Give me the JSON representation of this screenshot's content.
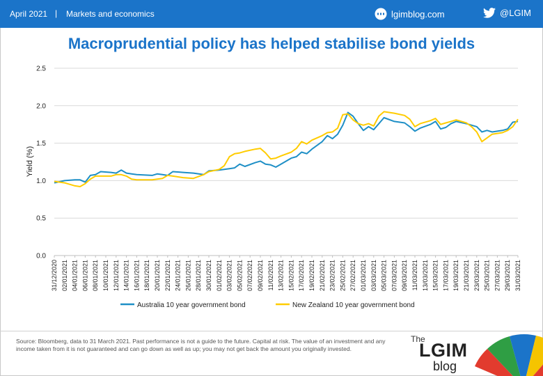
{
  "header": {
    "date": "April 2021",
    "separator": "|",
    "section": "Markets and economics",
    "site": "lgimblog.com",
    "twitter": "@LGIM"
  },
  "title": "Macroprudential policy has helped stabilise bond yields",
  "source_note": "Source: Bloomberg, data to 31 March 2021. Past performance is not a guide to the future. Capital at risk. The value of an investment and any income taken from it is not guaranteed and can go down as well as up; you may not get back the amount you originally invested.",
  "logo": {
    "the": "The",
    "lgim": "LGIM",
    "blog": "blog"
  },
  "colors": {
    "brand": "#1b74c9",
    "australia": "#1e8fc6",
    "new_zealand": "#ffcc00",
    "grid": "#d9d9d9"
  },
  "chart_data": {
    "type": "line",
    "title": "Macroprudential policy has helped stabilise bond yields",
    "ylabel": "Yield (%)",
    "xlabel": "",
    "ylim": [
      0.0,
      2.5
    ],
    "yticks": [
      "0.0",
      "0.5",
      "1.0",
      "1.5",
      "2.0",
      "2.5"
    ],
    "grid": true,
    "legend": "bottom",
    "xtick_labels": [
      "31/12/2020",
      "02/01/2021",
      "04/01/2021",
      "06/01/2021",
      "08/01/2021",
      "10/01/2021",
      "12/01/2021",
      "14/01/2021",
      "16/01/2021",
      "18/01/2021",
      "20/01/2021",
      "22/01/2021",
      "24/01/2021",
      "26/01/2021",
      "28/01/2021",
      "30/01/2021",
      "01/02/2021",
      "03/02/2021",
      "05/02/2021",
      "07/02/2021",
      "09/02/2021",
      "11/02/2021",
      "13/02/2021",
      "15/02/2021",
      "17/02/2021",
      "19/02/2021",
      "21/02/2021",
      "23/02/2021",
      "25/02/2021",
      "27/02/2021",
      "01/03/2021",
      "03/03/2021",
      "05/03/2021",
      "07/03/2021",
      "09/03/2021",
      "11/03/2021",
      "13/03/2021",
      "15/03/2021",
      "17/03/2021",
      "19/03/2021",
      "21/03/2021",
      "23/03/2021",
      "25/03/2021",
      "27/03/2021",
      "29/03/2021",
      "31/03/2021"
    ],
    "series": [
      {
        "name": "Australia 10 year government bond",
        "points": [
          [
            "31/12/2020",
            0.97
          ],
          [
            "02/01/2021",
            1.0
          ],
          [
            "04/01/2021",
            1.01
          ],
          [
            "05/01/2021",
            1.01
          ],
          [
            "06/01/2021",
            0.98
          ],
          [
            "07/01/2021",
            1.07
          ],
          [
            "08/01/2021",
            1.08
          ],
          [
            "09/01/2021",
            1.12
          ],
          [
            "11/01/2021",
            1.11
          ],
          [
            "12/01/2021",
            1.1
          ],
          [
            "13/01/2021",
            1.14
          ],
          [
            "14/01/2021",
            1.1
          ],
          [
            "15/01/2021",
            1.09
          ],
          [
            "16/01/2021",
            1.08
          ],
          [
            "19/01/2021",
            1.07
          ],
          [
            "20/01/2021",
            1.09
          ],
          [
            "21/01/2021",
            1.08
          ],
          [
            "22/01/2021",
            1.07
          ],
          [
            "23/01/2021",
            1.12
          ],
          [
            "25/01/2021",
            1.11
          ],
          [
            "27/01/2021",
            1.1
          ],
          [
            "29/01/2021",
            1.08
          ],
          [
            "30/01/2021",
            1.13
          ],
          [
            "01/02/2021",
            1.14
          ],
          [
            "02/02/2021",
            1.15
          ],
          [
            "03/02/2021",
            1.16
          ],
          [
            "04/02/2021",
            1.17
          ],
          [
            "05/02/2021",
            1.22
          ],
          [
            "06/02/2021",
            1.19
          ],
          [
            "08/02/2021",
            1.24
          ],
          [
            "09/02/2021",
            1.26
          ],
          [
            "10/02/2021",
            1.22
          ],
          [
            "11/02/2021",
            1.21
          ],
          [
            "12/02/2021",
            1.18
          ],
          [
            "13/02/2021",
            1.22
          ],
          [
            "15/02/2021",
            1.3
          ],
          [
            "16/02/2021",
            1.32
          ],
          [
            "17/02/2021",
            1.38
          ],
          [
            "18/02/2021",
            1.36
          ],
          [
            "19/02/2021",
            1.42
          ],
          [
            "21/02/2021",
            1.52
          ],
          [
            "22/02/2021",
            1.6
          ],
          [
            "23/02/2021",
            1.56
          ],
          [
            "24/02/2021",
            1.62
          ],
          [
            "25/02/2021",
            1.74
          ],
          [
            "26/02/2021",
            1.91
          ],
          [
            "27/02/2021",
            1.86
          ],
          [
            "28/02/2021",
            1.76
          ],
          [
            "01/03/2021",
            1.67
          ],
          [
            "02/03/2021",
            1.72
          ],
          [
            "03/03/2021",
            1.68
          ],
          [
            "04/03/2021",
            1.76
          ],
          [
            "05/03/2021",
            1.84
          ],
          [
            "07/03/2021",
            1.79
          ],
          [
            "09/03/2021",
            1.77
          ],
          [
            "10/03/2021",
            1.72
          ],
          [
            "11/03/2021",
            1.66
          ],
          [
            "12/03/2021",
            1.7
          ],
          [
            "14/03/2021",
            1.75
          ],
          [
            "15/03/2021",
            1.79
          ],
          [
            "16/03/2021",
            1.69
          ],
          [
            "17/03/2021",
            1.71
          ],
          [
            "18/03/2021",
            1.76
          ],
          [
            "19/03/2021",
            1.79
          ],
          [
            "21/03/2021",
            1.76
          ],
          [
            "22/03/2021",
            1.74
          ],
          [
            "23/03/2021",
            1.72
          ],
          [
            "24/03/2021",
            1.65
          ],
          [
            "25/03/2021",
            1.67
          ],
          [
            "26/03/2021",
            1.65
          ],
          [
            "28/03/2021",
            1.67
          ],
          [
            "29/03/2021",
            1.69
          ],
          [
            "30/03/2021",
            1.78
          ],
          [
            "31/03/2021",
            1.79
          ]
        ]
      },
      {
        "name": "New Zealand 10 year government bond",
        "points": [
          [
            "31/12/2020",
            0.99
          ],
          [
            "02/01/2021",
            0.97
          ],
          [
            "04/01/2021",
            0.93
          ],
          [
            "05/01/2021",
            0.92
          ],
          [
            "06/01/2021",
            0.96
          ],
          [
            "07/01/2021",
            1.02
          ],
          [
            "08/01/2021",
            1.06
          ],
          [
            "09/01/2021",
            1.06
          ],
          [
            "11/01/2021",
            1.06
          ],
          [
            "12/01/2021",
            1.08
          ],
          [
            "13/01/2021",
            1.08
          ],
          [
            "14/01/2021",
            1.06
          ],
          [
            "15/01/2021",
            1.02
          ],
          [
            "16/01/2021",
            1.01
          ],
          [
            "19/01/2021",
            1.01
          ],
          [
            "20/01/2021",
            1.02
          ],
          [
            "21/01/2021",
            1.03
          ],
          [
            "22/01/2021",
            1.07
          ],
          [
            "23/01/2021",
            1.06
          ],
          [
            "25/01/2021",
            1.04
          ],
          [
            "27/01/2021",
            1.03
          ],
          [
            "29/01/2021",
            1.08
          ],
          [
            "30/01/2021",
            1.12
          ],
          [
            "01/02/2021",
            1.15
          ],
          [
            "02/02/2021",
            1.2
          ],
          [
            "03/02/2021",
            1.32
          ],
          [
            "04/02/2021",
            1.36
          ],
          [
            "05/02/2021",
            1.37
          ],
          [
            "06/02/2021",
            1.39
          ],
          [
            "08/02/2021",
            1.42
          ],
          [
            "09/02/2021",
            1.43
          ],
          [
            "10/02/2021",
            1.37
          ],
          [
            "11/02/2021",
            1.29
          ],
          [
            "12/02/2021",
            1.3
          ],
          [
            "13/02/2021",
            1.33
          ],
          [
            "15/02/2021",
            1.38
          ],
          [
            "16/02/2021",
            1.43
          ],
          [
            "17/02/2021",
            1.52
          ],
          [
            "18/02/2021",
            1.49
          ],
          [
            "19/02/2021",
            1.54
          ],
          [
            "21/02/2021",
            1.6
          ],
          [
            "22/02/2021",
            1.64
          ],
          [
            "23/02/2021",
            1.65
          ],
          [
            "24/02/2021",
            1.7
          ],
          [
            "25/02/2021",
            1.88
          ],
          [
            "26/02/2021",
            1.89
          ],
          [
            "27/02/2021",
            1.81
          ],
          [
            "28/02/2021",
            1.76
          ],
          [
            "01/03/2021",
            1.74
          ],
          [
            "02/03/2021",
            1.76
          ],
          [
            "03/03/2021",
            1.73
          ],
          [
            "04/03/2021",
            1.86
          ],
          [
            "05/03/2021",
            1.92
          ],
          [
            "07/03/2021",
            1.9
          ],
          [
            "09/03/2021",
            1.87
          ],
          [
            "10/03/2021",
            1.82
          ],
          [
            "11/03/2021",
            1.72
          ],
          [
            "12/03/2021",
            1.76
          ],
          [
            "14/03/2021",
            1.8
          ],
          [
            "15/03/2021",
            1.83
          ],
          [
            "16/03/2021",
            1.75
          ],
          [
            "17/03/2021",
            1.77
          ],
          [
            "18/03/2021",
            1.79
          ],
          [
            "19/03/2021",
            1.81
          ],
          [
            "21/03/2021",
            1.77
          ],
          [
            "22/03/2021",
            1.72
          ],
          [
            "23/03/2021",
            1.65
          ],
          [
            "24/03/2021",
            1.52
          ],
          [
            "25/03/2021",
            1.57
          ],
          [
            "26/03/2021",
            1.62
          ],
          [
            "28/03/2021",
            1.64
          ],
          [
            "29/03/2021",
            1.67
          ],
          [
            "30/03/2021",
            1.72
          ],
          [
            "31/03/2021",
            1.82
          ]
        ]
      }
    ]
  }
}
